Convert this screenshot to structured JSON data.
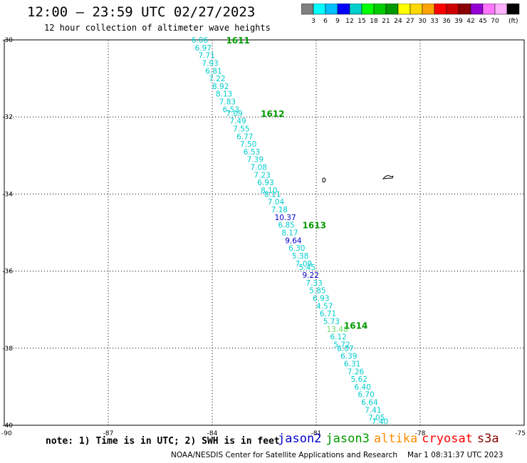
{
  "title": "12:00 – 23:59 UTC 02/27/2023",
  "subtitle": "12 hour collection of altimeter wave heights",
  "colorbar": {
    "labels": [
      "3",
      "6",
      "9",
      "12",
      "15",
      "18",
      "21",
      "24",
      "27",
      "30",
      "33",
      "36",
      "39",
      "42",
      "45",
      "70"
    ],
    "unit": "(ft)",
    "colors": [
      "#808080",
      "#00ffff",
      "#00bfff",
      "#0000ff",
      "#00cdcd",
      "#00ff00",
      "#00cd00",
      "#009900",
      "#ffff00",
      "#ffd700",
      "#ffa500",
      "#ff0000",
      "#cd0000",
      "#8b0000",
      "#9400d3",
      "#ff77ff",
      "#ffb0ff",
      "#000000"
    ]
  },
  "map": {
    "lat_ticks": [
      "-30",
      "-32",
      "-34",
      "-36",
      "-38",
      "-40"
    ],
    "lon_ticks": [
      "-90",
      "-87",
      "-84",
      "-81",
      "-78",
      "-75"
    ]
  },
  "chart_data": {
    "type": "scatter",
    "title": "12:00 – 23:59 UTC 02/27/2023",
    "subtitle": "12 hour collection of altimeter wave heights",
    "xlim": [
      -90,
      -75
    ],
    "ylim": [
      -40,
      -30
    ],
    "xticks": [
      -90,
      -87,
      -84,
      -81,
      -78,
      -75
    ],
    "yticks": [
      -30,
      -32,
      -34,
      -36,
      -38,
      -40
    ],
    "grid": true,
    "unit": "ft",
    "track_labels": [
      {
        "text": "1611",
        "lon": -83.6,
        "lat": -30.0
      },
      {
        "text": "1612",
        "lon": -82.6,
        "lat": -31.9
      },
      {
        "text": "1613",
        "lon": -81.4,
        "lat": -34.8
      },
      {
        "text": "1614",
        "lon": -80.2,
        "lat": -37.4
      }
    ],
    "points": [
      {
        "v": "6.06",
        "c": "#00cdcd",
        "lon": -84.6,
        "lat": -30.0
      },
      {
        "v": "6.97",
        "c": "#00cdcd",
        "lon": -84.5,
        "lat": -30.2
      },
      {
        "v": "7.71",
        "c": "#00cdcd",
        "lon": -84.4,
        "lat": -30.4
      },
      {
        "v": "7.93",
        "c": "#00cdcd",
        "lon": -84.3,
        "lat": -30.6
      },
      {
        "v": "6.81",
        "c": "#00cdcd",
        "lon": -84.2,
        "lat": -30.8
      },
      {
        "v": "7.22",
        "c": "#00cdcd",
        "lon": -84.1,
        "lat": -31.0
      },
      {
        "v": "8.92",
        "c": "#00cdcd",
        "lon": -84.0,
        "lat": -31.2
      },
      {
        "v": "8.13",
        "c": "#00cdcd",
        "lon": -83.9,
        "lat": -31.4
      },
      {
        "v": "7.83",
        "c": "#00cdcd",
        "lon": -83.8,
        "lat": -31.6
      },
      {
        "v": "6.53",
        "c": "#00cdcd",
        "lon": -83.7,
        "lat": -31.8
      },
      {
        "v": "7.09",
        "c": "#00cdcd",
        "lon": -83.6,
        "lat": -31.9
      },
      {
        "v": "7.49",
        "c": "#00cdcd",
        "lon": -83.5,
        "lat": -32.1
      },
      {
        "v": "7.55",
        "c": "#00cdcd",
        "lon": -83.4,
        "lat": -32.3
      },
      {
        "v": "6.77",
        "c": "#00cdcd",
        "lon": -83.3,
        "lat": -32.5
      },
      {
        "v": "7.50",
        "c": "#00cdcd",
        "lon": -83.2,
        "lat": -32.7
      },
      {
        "v": "6.53",
        "c": "#00cdcd",
        "lon": -83.1,
        "lat": -32.9
      },
      {
        "v": "7.39",
        "c": "#00cdcd",
        "lon": -83.0,
        "lat": -33.1
      },
      {
        "v": "7.08",
        "c": "#00cdcd",
        "lon": -82.9,
        "lat": -33.3
      },
      {
        "v": "7.23",
        "c": "#00cdcd",
        "lon": -82.8,
        "lat": -33.5
      },
      {
        "v": "6.93",
        "c": "#00cdcd",
        "lon": -82.7,
        "lat": -33.7
      },
      {
        "v": "8.10",
        "c": "#00cdcd",
        "lon": -82.6,
        "lat": -33.9
      },
      {
        "v": "8.11",
        "c": "#00cdcd",
        "lon": -82.5,
        "lat": -34.0
      },
      {
        "v": "7.04",
        "c": "#00cdcd",
        "lon": -82.4,
        "lat": -34.2
      },
      {
        "v": "7.18",
        "c": "#00cdcd",
        "lon": -82.3,
        "lat": -34.4
      },
      {
        "v": "10.37",
        "c": "#0000cd",
        "lon": -82.2,
        "lat": -34.6
      },
      {
        "v": "6.85",
        "c": "#00cdcd",
        "lon": -82.1,
        "lat": -34.8
      },
      {
        "v": "8.17",
        "c": "#00cdcd",
        "lon": -82.0,
        "lat": -35.0
      },
      {
        "v": "9.64",
        "c": "#0000cd",
        "lon": -81.9,
        "lat": -35.2
      },
      {
        "v": "6.30",
        "c": "#00cdcd",
        "lon": -81.8,
        "lat": -35.4
      },
      {
        "v": "5.38",
        "c": "#00cdcd",
        "lon": -81.7,
        "lat": -35.6
      },
      {
        "v": "7.09",
        "c": "#00cdcd",
        "lon": -81.6,
        "lat": -35.8
      },
      {
        "v": "5.45",
        "c": "#00cdcd",
        "lon": -81.5,
        "lat": -35.9
      },
      {
        "v": "9.22",
        "c": "#0000cd",
        "lon": -81.4,
        "lat": -36.1
      },
      {
        "v": "7.33",
        "c": "#00cdcd",
        "lon": -81.3,
        "lat": -36.3
      },
      {
        "v": "5.85",
        "c": "#00cdcd",
        "lon": -81.2,
        "lat": -36.5
      },
      {
        "v": "6.93",
        "c": "#00cdcd",
        "lon": -81.1,
        "lat": -36.7
      },
      {
        "v": "4.57",
        "c": "#00cdcd",
        "lon": -81.0,
        "lat": -36.9
      },
      {
        "v": "6.71",
        "c": "#00cdcd",
        "lon": -80.9,
        "lat": -37.1
      },
      {
        "v": "5.73",
        "c": "#00cdcd",
        "lon": -80.8,
        "lat": -37.3
      },
      {
        "v": "13.48",
        "c": "#66dd66",
        "lon": -80.7,
        "lat": -37.5
      },
      {
        "v": "6.12",
        "c": "#00cdcd",
        "lon": -80.6,
        "lat": -37.7
      },
      {
        "v": "5.72",
        "c": "#00cdcd",
        "lon": -80.5,
        "lat": -37.9
      },
      {
        "v": "6.07",
        "c": "#00cdcd",
        "lon": -80.4,
        "lat": -38.0
      },
      {
        "v": "6.39",
        "c": "#00cdcd",
        "lon": -80.3,
        "lat": -38.2
      },
      {
        "v": "6.31",
        "c": "#00cdcd",
        "lon": -80.2,
        "lat": -38.4
      },
      {
        "v": "7.26",
        "c": "#00cdcd",
        "lon": -80.1,
        "lat": -38.6
      },
      {
        "v": "5.62",
        "c": "#00cdcd",
        "lon": -80.0,
        "lat": -38.8
      },
      {
        "v": "6.40",
        "c": "#00cdcd",
        "lon": -79.9,
        "lat": -39.0
      },
      {
        "v": "6.70",
        "c": "#00cdcd",
        "lon": -79.8,
        "lat": -39.2
      },
      {
        "v": "6.64",
        "c": "#00cdcd",
        "lon": -79.7,
        "lat": -39.4
      },
      {
        "v": "7.41",
        "c": "#00cdcd",
        "lon": -79.6,
        "lat": -39.6
      },
      {
        "v": "7.05",
        "c": "#00cdcd",
        "lon": -79.5,
        "lat": -39.8
      },
      {
        "v": "7.40",
        "c": "#00cdcd",
        "lon": -79.4,
        "lat": -39.9
      }
    ]
  },
  "note": "note: 1) Time is in UTC; 2) SWH is in feet",
  "satellites": [
    {
      "name": "jason2",
      "color": "#0000cd"
    },
    {
      "name": "jason3",
      "color": "#009900"
    },
    {
      "name": "altika",
      "color": "#ff8c00"
    },
    {
      "name": "cryosat",
      "color": "#ff0000"
    },
    {
      "name": "s3a",
      "color": "#8b0000"
    }
  ],
  "footer": {
    "credit": "NOAA/NESDIS Center for Satellite Applications and Research",
    "timestamp": "Mar  1 08:31:37 UTC 2023"
  }
}
